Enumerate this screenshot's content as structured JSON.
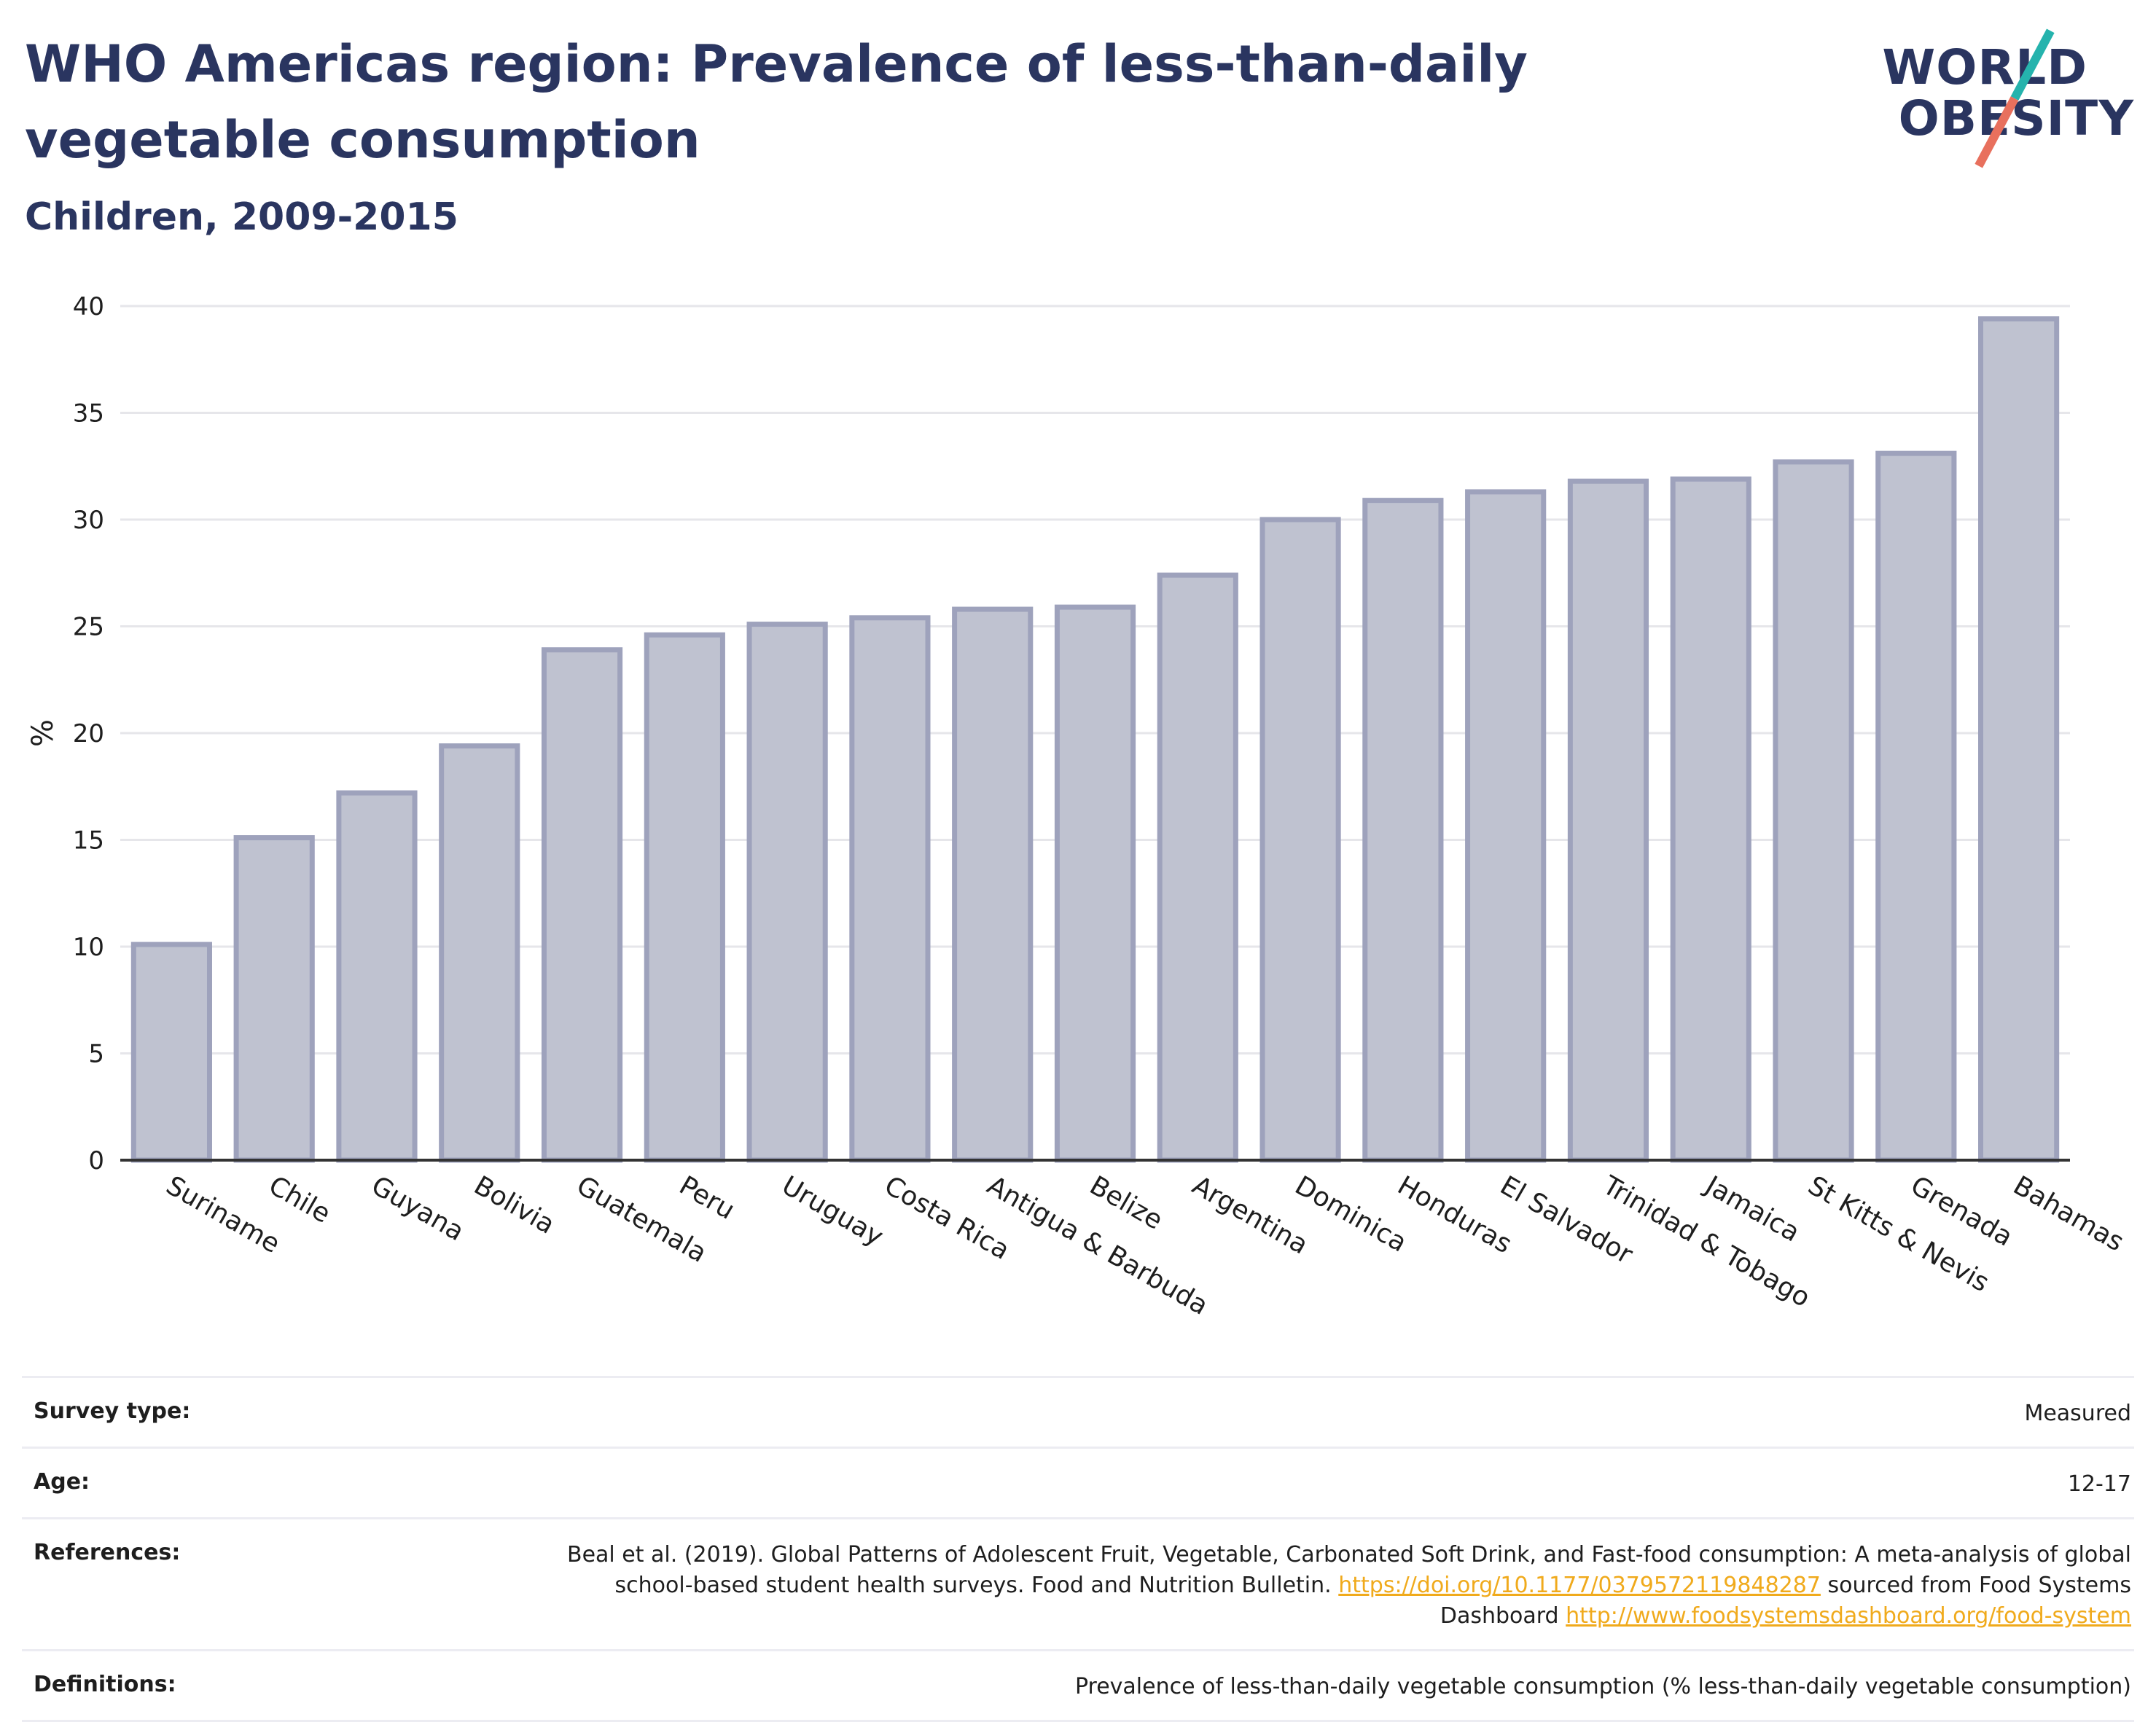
{
  "header": {
    "title": "WHO Americas region: Prevalence of less-than-daily vegetable consumption",
    "subtitle": "Children, 2009-2015"
  },
  "logo": {
    "line1": "WORLD",
    "line2": "OBESITY",
    "colors": {
      "text": "#2a3560",
      "teal": "#25b3ad",
      "coral": "#e8705d"
    }
  },
  "chart_data": {
    "type": "bar",
    "categories": [
      "Suriname",
      "Chile",
      "Guyana",
      "Bolivia",
      "Guatemala",
      "Peru",
      "Uruguay",
      "Costa Rica",
      "Antigua & Barbuda",
      "Belize",
      "Argentina",
      "Dominica",
      "Honduras",
      "El Salvador",
      "Trinidad & Tobago",
      "Jamaica",
      "St Kitts & Nevis",
      "Grenada",
      "Bahamas"
    ],
    "values": [
      10.1,
      15.1,
      17.2,
      19.4,
      23.9,
      24.6,
      25.1,
      25.4,
      25.8,
      25.9,
      27.4,
      30.0,
      30.9,
      31.3,
      31.8,
      31.9,
      32.7,
      33.1,
      39.4
    ],
    "title": "",
    "xlabel": "",
    "ylabel": "%",
    "ylim": [
      0,
      40
    ],
    "yticks": [
      0,
      5,
      10,
      15,
      20,
      25,
      30,
      35,
      40
    ],
    "grid": true,
    "legend": "none",
    "colors": {
      "bar_fill": "#bfc2d0",
      "bar_stroke": "#9ea2bc",
      "axis": "#333333",
      "grid": "#e6e6ea"
    }
  },
  "meta": {
    "survey_type": {
      "label": "Survey type:",
      "value": "Measured"
    },
    "age": {
      "label": "Age:",
      "value": "12-17"
    },
    "references": {
      "label": "References:",
      "text1": "Beal et al. (2019). Global Patterns of Adolescent Fruit, Vegetable, Carbonated Soft Drink, and Fast-food consumption: A meta-analysis of global school-based student health surveys. Food and Nutrition Bulletin.",
      "link1": "https://doi.org/10.1177/0379572119848287",
      "text2": "sourced from Food Systems Dashboard",
      "link2": "http://www.foodsystemsdashboard.org/food-system"
    },
    "definitions": {
      "label": "Definitions:",
      "value": "Prevalence of less-than-daily vegetable consumption (% less-than-daily vegetable consumption)"
    }
  }
}
